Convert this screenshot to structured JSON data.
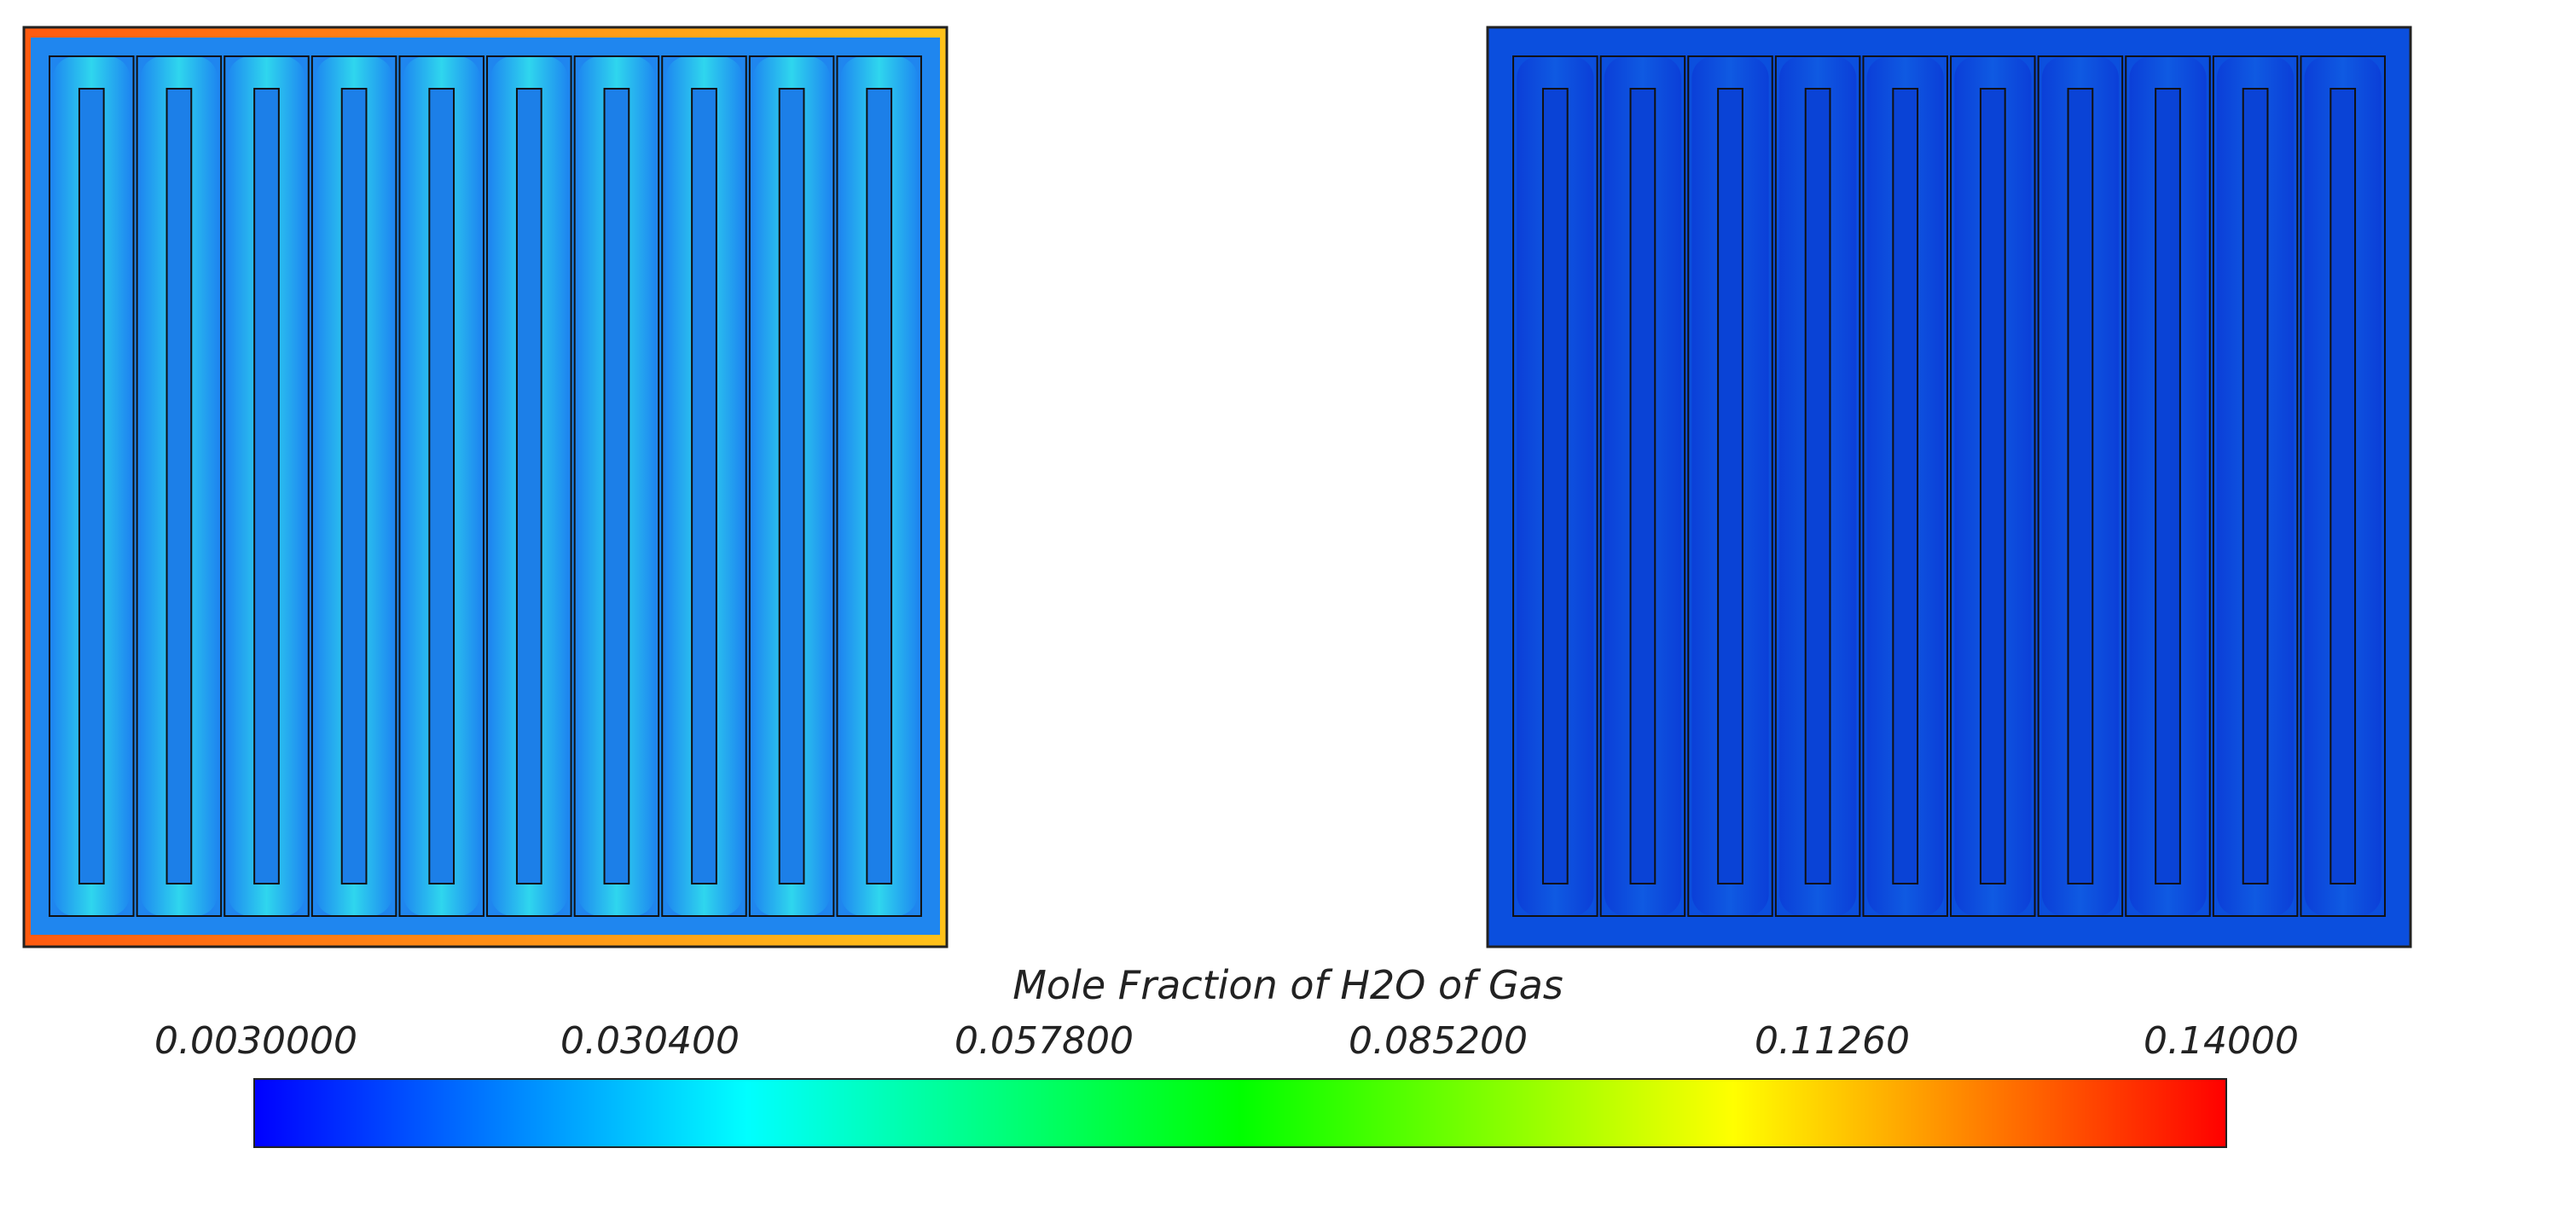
{
  "figure": {
    "panels": [
      {
        "id": "left",
        "description_color": "#1a6fd8"
      },
      {
        "id": "right",
        "description_color": "#0a4fdc"
      }
    ]
  },
  "colorbar": {
    "title": "Mole Fraction of H2O of Gas",
    "ticks": [
      "0.0030000",
      "0.030400",
      "0.057800",
      "0.085200",
      "0.11260",
      "0.14000"
    ],
    "range": [
      0.003,
      0.14
    ],
    "colors": [
      "#0000ff",
      "#00ffff",
      "#00ff00",
      "#ffff00",
      "#ff0000"
    ]
  }
}
